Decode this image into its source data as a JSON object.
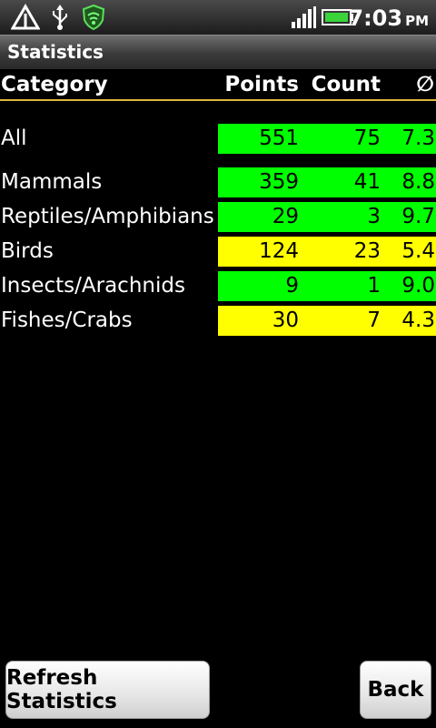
{
  "status_bar": {
    "time": "7:03",
    "ampm": "PM",
    "icons": [
      "alert-triangle-icon",
      "usb-icon",
      "wifi-shield-icon",
      "signal-icon",
      "battery-icon"
    ]
  },
  "title": "Statistics",
  "table": {
    "headers": {
      "category": "Category",
      "points": "Points",
      "count": "Count",
      "avg": "∅"
    },
    "rows": [
      {
        "category": "All",
        "points": "551",
        "count": "75",
        "avg": "7.3",
        "color": "#00ff00"
      },
      {
        "category": "Mammals",
        "points": "359",
        "count": "41",
        "avg": "8.8",
        "color": "#00ff00"
      },
      {
        "category": "Reptiles/Amphibians",
        "points": "29",
        "count": "3",
        "avg": "9.7",
        "color": "#00ff00"
      },
      {
        "category": "Birds",
        "points": "124",
        "count": "23",
        "avg": "5.4",
        "color": "#ffff00"
      },
      {
        "category": "Insects/Arachnids",
        "points": "9",
        "count": "1",
        "avg": "9.0",
        "color": "#00ff00"
      },
      {
        "category": "Fishes/Crabs",
        "points": "30",
        "count": "7",
        "avg": "4.3",
        "color": "#ffff00"
      }
    ]
  },
  "buttons": {
    "refresh": "Refresh Statistics",
    "back": "Back"
  },
  "colors": {
    "header_line": "#e0b63a",
    "good": "#00ff00",
    "warn": "#ffff00"
  }
}
